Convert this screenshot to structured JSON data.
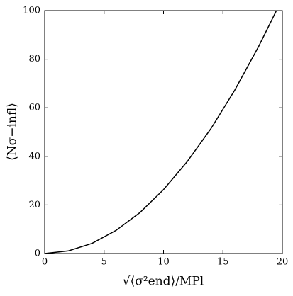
{
  "chart_data": {
    "type": "line",
    "x_label": "√⟨σ²end⟩/MPl",
    "y_label": "⟨Nσ−infl⟩",
    "x": [
      0,
      2,
      4,
      6,
      8,
      10,
      12,
      14,
      16,
      18,
      19.5
    ],
    "series": [
      {
        "color": "#000000",
        "values": [
          0,
          1.1,
          4.2,
          9.5,
          16.8,
          26.3,
          37.9,
          51.5,
          67.3,
          85.2,
          100
        ]
      }
    ],
    "xlim": [
      0,
      20
    ],
    "xticks": [
      0,
      5,
      10,
      15,
      20
    ],
    "ylim": [
      0,
      100
    ],
    "yticks": [
      0,
      20,
      40,
      60,
      80,
      100
    ]
  }
}
